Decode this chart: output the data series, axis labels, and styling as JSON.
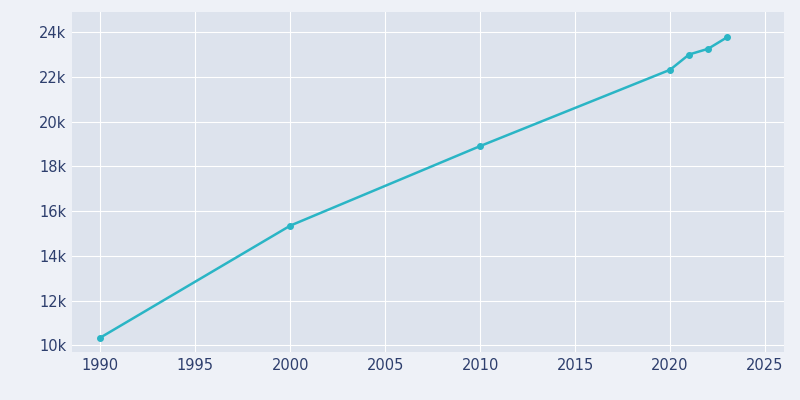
{
  "years": [
    1990,
    2000,
    2010,
    2020,
    2021,
    2022,
    2023
  ],
  "population": [
    10347,
    15351,
    18907,
    22317,
    23000,
    23254,
    23769
  ],
  "line_color": "#2ab5c5",
  "marker_color": "#2ab5c5",
  "fig_bg_color": "#eef1f7",
  "plot_bg_color": "#dde3ed",
  "grid_color": "#ffffff",
  "text_color": "#2d3e6d",
  "xlim": [
    1988.5,
    2026
  ],
  "ylim": [
    9700,
    24900
  ],
  "yticks": [
    10000,
    12000,
    14000,
    16000,
    18000,
    20000,
    22000,
    24000
  ],
  "xticks": [
    1990,
    1995,
    2000,
    2005,
    2010,
    2015,
    2020,
    2025
  ],
  "marker_style": "o",
  "marker_size": 4,
  "line_width": 1.8
}
